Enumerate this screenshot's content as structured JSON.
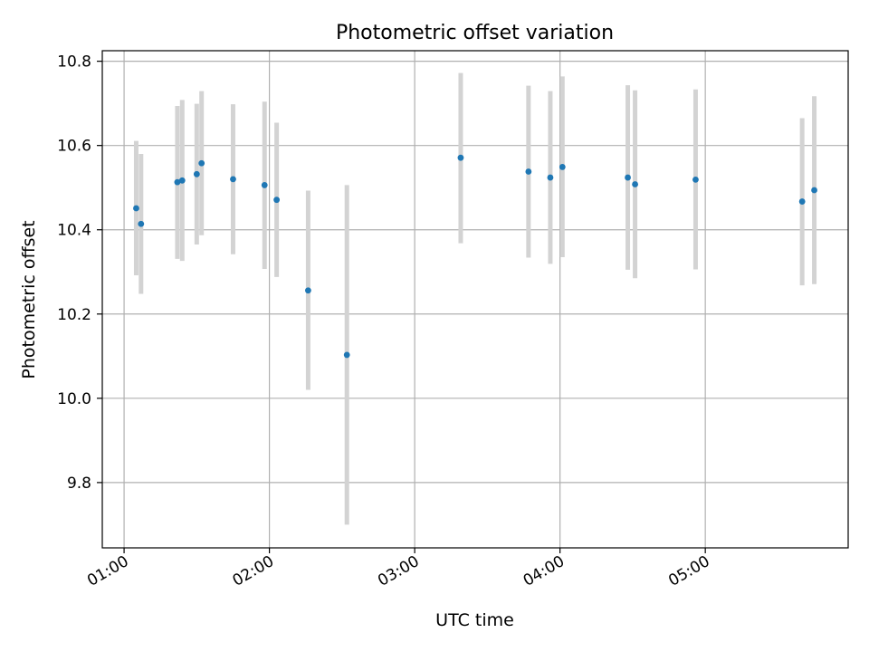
{
  "chart_data": {
    "type": "scatter",
    "title": "Photometric offset variation",
    "xlabel": "UTC time",
    "ylabel": "Photometric offset",
    "xlim": [
      "00:51",
      "05:59"
    ],
    "ylim": [
      9.645,
      10.825
    ],
    "x_ticks": [
      "01:00",
      "02:00",
      "03:00",
      "04:00",
      "05:00"
    ],
    "y_ticks": [
      9.8,
      10.0,
      10.2,
      10.4,
      10.6,
      10.8
    ],
    "y_tick_labels": [
      "9.8",
      "10.0",
      "10.2",
      "10.4",
      "10.6",
      "10.8"
    ],
    "grid": true,
    "point_color": "#1f77b4",
    "errorbar_color": "#d3d3d3",
    "points": [
      {
        "time": "01:05",
        "y": 10.451,
        "err_low": 10.292,
        "err_high": 10.611
      },
      {
        "time": "01:07",
        "y": 10.414,
        "err_low": 10.248,
        "err_high": 10.58
      },
      {
        "time": "01:22",
        "y": 10.513,
        "err_low": 10.331,
        "err_high": 10.694
      },
      {
        "time": "01:24",
        "y": 10.517,
        "err_low": 10.326,
        "err_high": 10.708
      },
      {
        "time": "01:30",
        "y": 10.532,
        "err_low": 10.365,
        "err_high": 10.699
      },
      {
        "time": "01:32",
        "y": 10.558,
        "err_low": 10.387,
        "err_high": 10.729
      },
      {
        "time": "01:45",
        "y": 10.52,
        "err_low": 10.342,
        "err_high": 10.698
      },
      {
        "time": "01:58",
        "y": 10.506,
        "err_low": 10.307,
        "err_high": 10.704
      },
      {
        "time": "02:03",
        "y": 10.471,
        "err_low": 10.288,
        "err_high": 10.654
      },
      {
        "time": "02:16",
        "y": 10.256,
        "err_low": 10.02,
        "err_high": 10.493
      },
      {
        "time": "02:32",
        "y": 10.103,
        "err_low": 9.7,
        "err_high": 10.506
      },
      {
        "time": "03:19",
        "y": 10.571,
        "err_low": 10.368,
        "err_high": 10.772
      },
      {
        "time": "03:47",
        "y": 10.538,
        "err_low": 10.334,
        "err_high": 10.742
      },
      {
        "time": "03:56",
        "y": 10.524,
        "err_low": 10.319,
        "err_high": 10.729
      },
      {
        "time": "04:01",
        "y": 10.549,
        "err_low": 10.335,
        "err_high": 10.764
      },
      {
        "time": "04:28",
        "y": 10.524,
        "err_low": 10.305,
        "err_high": 10.743
      },
      {
        "time": "04:31",
        "y": 10.508,
        "err_low": 10.285,
        "err_high": 10.731
      },
      {
        "time": "04:56",
        "y": 10.519,
        "err_low": 10.306,
        "err_high": 10.733
      },
      {
        "time": "05:40",
        "y": 10.467,
        "err_low": 10.268,
        "err_high": 10.665
      },
      {
        "time": "05:45",
        "y": 10.494,
        "err_low": 10.271,
        "err_high": 10.717
      }
    ]
  }
}
